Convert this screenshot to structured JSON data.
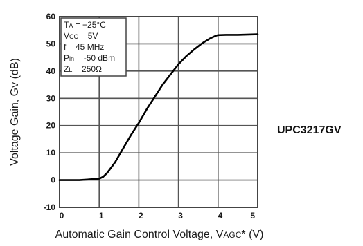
{
  "part_number": "UPC3217GV",
  "chart_data": {
    "type": "line",
    "xlabel_parts": [
      "Automatic Gain Control Voltage, V",
      "AGC",
      "*  (V)"
    ],
    "ylabel_parts": [
      "Voltage Gain, G",
      "V",
      " (dB)"
    ],
    "xlim": [
      0,
      5
    ],
    "ylim": [
      -10,
      60
    ],
    "xticks": [
      "0",
      "1",
      "2",
      "3",
      "4",
      "5"
    ],
    "yticks": [
      "-10",
      "0",
      "10",
      "20",
      "30",
      "40",
      "50",
      "60"
    ],
    "grid": true,
    "conditions": [
      {
        "main": "T",
        "sub": "A",
        "rest": " = +25°C"
      },
      {
        "main": "V",
        "sub": "CC",
        "rest": " = 5V"
      },
      {
        "main": "f = 45 MHz",
        "sub": "",
        "rest": ""
      },
      {
        "main": "P",
        "sub": "in",
        "rest": " = -50 dBm"
      },
      {
        "main": "Z",
        "sub": "L",
        "rest": " = 250Ω"
      }
    ],
    "series": [
      {
        "x": [
          0,
          0.5,
          1.0,
          1.1,
          1.2,
          1.4,
          1.6,
          1.8,
          2.0,
          2.2,
          2.4,
          2.6,
          2.8,
          3.0,
          3.2,
          3.4,
          3.6,
          3.8,
          3.95,
          4.0,
          4.2,
          4.5,
          5.0
        ],
        "y": [
          0,
          0,
          0.5,
          1.2,
          2.6,
          6.5,
          11.5,
          16.5,
          21.0,
          26.0,
          30.5,
          35.0,
          38.8,
          42.5,
          45.5,
          48.0,
          50.2,
          52.0,
          53.0,
          53.2,
          53.3,
          53.3,
          53.5
        ]
      }
    ]
  }
}
